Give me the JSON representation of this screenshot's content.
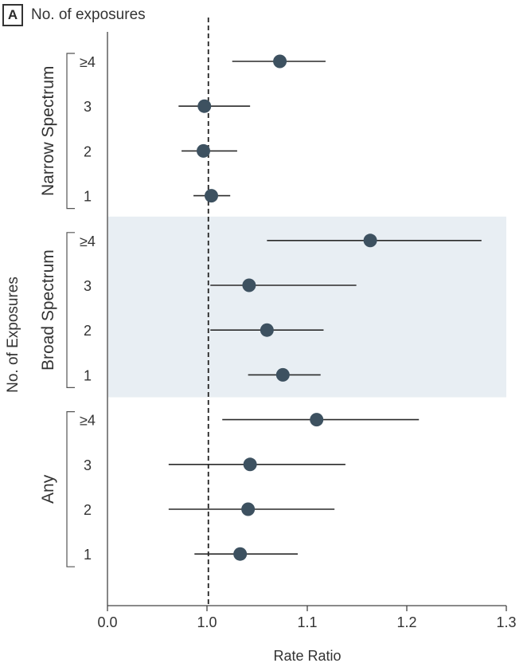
{
  "panel": {
    "letter": "A",
    "title": "No. of exposures"
  },
  "chart_data": {
    "type": "forest",
    "xlabel": "Rate Ratio",
    "ylabel": "No. of Exposures",
    "xlim": [
      0.0,
      1.3
    ],
    "xticks": [
      "0.0",
      "1.0",
      "1.1",
      "1.2",
      "1.3"
    ],
    "reference_line": 1.0,
    "groups": [
      {
        "name": "Narrow Spectrum",
        "shaded": false,
        "rows": [
          {
            "label": "≥4",
            "estimate": 1.072,
            "lower": 1.024,
            "upper": 1.118
          },
          {
            "label": "3",
            "estimate": 0.996,
            "lower": 0.97,
            "upper": 1.042
          },
          {
            "label": "2",
            "estimate": 0.995,
            "lower": 0.973,
            "upper": 1.029
          },
          {
            "label": "1",
            "estimate": 1.003,
            "lower": 0.985,
            "upper": 1.022
          }
        ]
      },
      {
        "name": "Broad Spectrum",
        "shaded": true,
        "rows": [
          {
            "label": "≥4",
            "estimate": 1.163,
            "lower": 1.059,
            "upper": 1.275
          },
          {
            "label": "3",
            "estimate": 1.041,
            "lower": 1.002,
            "upper": 1.149
          },
          {
            "label": "2",
            "estimate": 1.059,
            "lower": 1.002,
            "upper": 1.116
          },
          {
            "label": "1",
            "estimate": 1.075,
            "lower": 1.04,
            "upper": 1.113
          }
        ]
      },
      {
        "name": "Any",
        "shaded": false,
        "rows": [
          {
            "label": "≥4",
            "estimate": 1.109,
            "lower": 1.014,
            "upper": 1.212
          },
          {
            "label": "3",
            "estimate": 1.042,
            "lower": 0.96,
            "upper": 1.138
          },
          {
            "label": "2",
            "estimate": 1.04,
            "lower": 0.96,
            "upper": 1.127
          },
          {
            "label": "1",
            "estimate": 1.032,
            "lower": 0.986,
            "upper": 1.09
          }
        ]
      }
    ]
  },
  "colors": {
    "marker": "#3d5160",
    "ci_line": "#2a2a2a",
    "shade": "#e8eef3",
    "reference": "#222222"
  }
}
